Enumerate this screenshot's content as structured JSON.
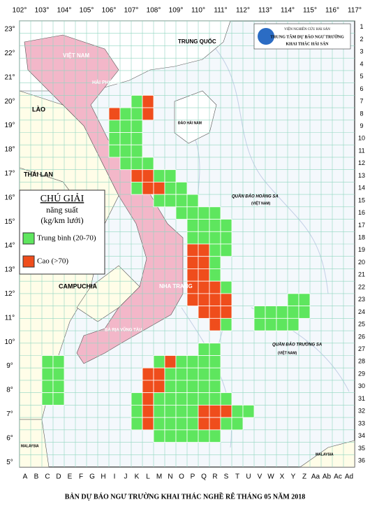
{
  "header": {
    "institute": "VIỆN NGHIÊN CỨU HẢI SẢN",
    "center": "TRUNG TÂM DỰ BÁO NGƯ TRƯỜNG",
    "unit": "KHAI THÁC HẢI SẢN"
  },
  "longitudes": [
    "102°",
    "103°",
    "104°",
    "105°",
    "106°",
    "107°",
    "108°",
    "109°",
    "110°",
    "111°",
    "112°",
    "113°",
    "114°",
    "115°",
    "116°",
    "117°"
  ],
  "latitudes": [
    "23°",
    "22°",
    "21°",
    "20°",
    "19°",
    "18°",
    "17°",
    "16°",
    "15°",
    "14°",
    "13°",
    "12°",
    "11°",
    "10°",
    "9°",
    "8°",
    "7°",
    "6°",
    "5°"
  ],
  "columns": [
    "A",
    "B",
    "C",
    "D",
    "E",
    "F",
    "G",
    "H",
    "I",
    "J",
    "K",
    "L",
    "M",
    "N",
    "O",
    "P",
    "Q",
    "R",
    "S",
    "T",
    "U",
    "V",
    "W",
    "X",
    "Y",
    "Z",
    "Aa",
    "Ab",
    "Ac",
    "Ad"
  ],
  "rows": [
    1,
    2,
    3,
    4,
    5,
    6,
    7,
    8,
    9,
    10,
    11,
    12,
    13,
    14,
    15,
    16,
    17,
    18,
    19,
    20,
    21,
    22,
    23,
    24,
    25,
    26,
    27,
    28,
    29,
    30,
    31,
    32,
    33,
    34,
    35,
    36
  ],
  "places": {
    "china": "TRUNG QUỐC",
    "vietnam": "VIỆT NAM",
    "laos": "LÀO",
    "thailand": "THÁI LAN",
    "cambodia": "CAMPUCHIA",
    "malaysia": "MALAYSIA",
    "haiphong": "HẢI PHÒNG",
    "hainan": "ĐẢO HẢI NAM",
    "paracel": "QUẦN ĐẢO HOÀNG SA",
    "paracel_owner": "(VIỆT NAM)",
    "spratly": "QUẦN ĐẢO TRƯỜNG SA",
    "spratly_owner": "(VIỆT NAM)",
    "nhatrang": "NHA TRANG",
    "vungtau": "BÀ RỊA VŨNG TÀU"
  },
  "legend": {
    "title": "CHÚ GIẢI",
    "subtitle": "năng suất",
    "unit": "(kg/km lưới)",
    "items": [
      "Trung bình (20-70)",
      "Cao (>70)"
    ]
  },
  "title": "BẢN DỰ BÁO NGƯ TRƯỜNG KHAI THÁC NGHỀ RÊ THÁNG 05 NĂM 2018"
}
